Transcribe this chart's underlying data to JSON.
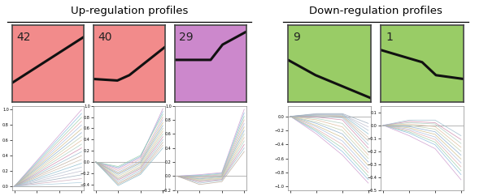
{
  "title_up": "Up-regulation profiles",
  "title_down": "Down-regulation profiles",
  "profiles": [
    {
      "label": "42",
      "color": "#f28b8b",
      "border": "#444444",
      "line": [
        [
          0,
          0.25
        ],
        [
          3,
          0.85
        ]
      ],
      "type": "up"
    },
    {
      "label": "40",
      "color": "#f28b8b",
      "border": "#444444",
      "line": [
        [
          0,
          0.3
        ],
        [
          1,
          0.28
        ],
        [
          1.5,
          0.35
        ],
        [
          3,
          0.72
        ]
      ],
      "type": "up"
    },
    {
      "label": "29",
      "color": "#cc88cc",
      "border": "#444444",
      "line": [
        [
          0,
          0.55
        ],
        [
          1.5,
          0.55
        ],
        [
          2,
          0.75
        ],
        [
          3,
          0.92
        ]
      ],
      "type": "up"
    },
    {
      "label": "9",
      "color": "#99cc66",
      "border": "#444444",
      "line": [
        [
          0,
          0.55
        ],
        [
          1,
          0.35
        ],
        [
          3,
          0.05
        ]
      ],
      "type": "down"
    },
    {
      "label": "1",
      "color": "#99cc66",
      "border": "#444444",
      "line": [
        [
          0,
          0.68
        ],
        [
          1.5,
          0.52
        ],
        [
          2,
          0.35
        ],
        [
          3,
          0.3
        ]
      ],
      "type": "down"
    }
  ],
  "subplot_configs": [
    {
      "id": 0,
      "lines": [
        [
          0,
          0.0,
          3,
          1.0
        ],
        [
          0,
          0.0,
          3,
          0.95
        ],
        [
          0,
          0.0,
          3,
          0.9
        ],
        [
          0,
          0.0,
          3,
          0.85
        ],
        [
          0,
          0.0,
          3,
          0.8
        ],
        [
          0,
          0.0,
          3,
          0.75
        ],
        [
          0,
          0.0,
          3,
          0.7
        ],
        [
          0,
          0.0,
          3,
          0.65
        ],
        [
          0,
          0.0,
          3,
          0.6
        ],
        [
          0,
          0.0,
          3,
          0.55
        ],
        [
          0,
          0.0,
          3,
          0.5
        ],
        [
          0,
          0.0,
          3,
          0.45
        ],
        [
          0,
          0.0,
          3,
          0.4
        ],
        [
          0,
          0.0,
          3,
          0.35
        ],
        [
          0,
          0.0,
          3,
          0.3
        ],
        [
          0,
          0.0,
          3,
          0.25
        ],
        [
          0,
          0.0,
          3,
          0.2
        ],
        [
          0,
          0.0,
          3,
          0.15
        ],
        [
          0,
          0.0,
          3,
          0.1
        ],
        [
          0,
          0.0,
          3,
          0.05
        ]
      ],
      "ylim": [
        -0.05,
        1.05
      ],
      "zero_line": 0.0
    },
    {
      "id": 1,
      "lines": [
        [
          0,
          0.0,
          1,
          -0.12,
          2,
          0.08,
          3,
          0.95
        ],
        [
          0,
          0.0,
          1,
          -0.1,
          2,
          0.1,
          3,
          0.9
        ],
        [
          0,
          0.0,
          1,
          -0.08,
          2,
          0.12,
          3,
          0.85
        ],
        [
          0,
          0.0,
          1,
          -0.15,
          2,
          0.05,
          3,
          0.8
        ],
        [
          0,
          0.0,
          1,
          -0.18,
          2,
          0.02,
          3,
          0.75
        ],
        [
          0,
          0.0,
          1,
          -0.2,
          2,
          0.0,
          3,
          0.7
        ],
        [
          0,
          0.0,
          1,
          -0.22,
          2,
          -0.02,
          3,
          0.65
        ],
        [
          0,
          0.0,
          1,
          -0.25,
          2,
          -0.05,
          3,
          0.6
        ],
        [
          0,
          0.0,
          1,
          -0.28,
          2,
          -0.08,
          3,
          0.55
        ],
        [
          0,
          0.0,
          1,
          -0.3,
          2,
          -0.1,
          3,
          0.5
        ],
        [
          0,
          0.0,
          1,
          -0.32,
          2,
          -0.12,
          3,
          0.45
        ],
        [
          0,
          0.0,
          1,
          -0.35,
          2,
          -0.15,
          3,
          0.4
        ],
        [
          0,
          0.0,
          1,
          -0.38,
          2,
          -0.18,
          3,
          0.35
        ],
        [
          0,
          0.0,
          1,
          -0.4,
          2,
          -0.2,
          3,
          0.3
        ],
        [
          0,
          0.0,
          1,
          -0.42,
          2,
          -0.22,
          3,
          0.25
        ]
      ],
      "ylim": [
        -0.5,
        1.0
      ],
      "zero_line": 0.0
    },
    {
      "id": 2,
      "lines": [
        [
          0,
          0.0,
          1,
          0.02,
          2,
          0.05,
          3,
          0.95
        ],
        [
          0,
          0.0,
          1,
          0.01,
          2,
          0.04,
          3,
          0.9
        ],
        [
          0,
          0.0,
          1,
          0.0,
          2,
          0.03,
          3,
          0.85
        ],
        [
          0,
          0.0,
          1,
          -0.01,
          2,
          0.02,
          3,
          0.8
        ],
        [
          0,
          0.0,
          1,
          -0.02,
          2,
          0.01,
          3,
          0.75
        ],
        [
          0,
          0.0,
          1,
          -0.03,
          2,
          0.0,
          3,
          0.7
        ],
        [
          0,
          0.0,
          1,
          -0.04,
          2,
          -0.01,
          3,
          0.65
        ],
        [
          0,
          0.0,
          1,
          -0.05,
          2,
          -0.02,
          3,
          0.6
        ],
        [
          0,
          0.0,
          1,
          -0.06,
          2,
          -0.03,
          3,
          0.55
        ],
        [
          0,
          0.0,
          1,
          -0.07,
          2,
          -0.04,
          3,
          0.5
        ],
        [
          0,
          0.0,
          1,
          -0.08,
          2,
          -0.05,
          3,
          0.45
        ],
        [
          0,
          0.0,
          1,
          -0.1,
          2,
          -0.06,
          3,
          0.4
        ],
        [
          0,
          0.0,
          1,
          -0.12,
          2,
          -0.08,
          3,
          0.35
        ]
      ],
      "ylim": [
        -0.2,
        1.0
      ],
      "zero_line": 0.0
    },
    {
      "id": 3,
      "lines": [
        [
          0,
          0.0,
          1,
          -0.25,
          2,
          -0.55,
          3,
          -0.95
        ],
        [
          0,
          0.0,
          1,
          -0.22,
          2,
          -0.5,
          3,
          -0.9
        ],
        [
          0,
          0.0,
          1,
          -0.2,
          2,
          -0.45,
          3,
          -0.85
        ],
        [
          0,
          0.0,
          1,
          -0.18,
          2,
          -0.4,
          3,
          -0.8
        ],
        [
          0,
          0.0,
          1,
          -0.15,
          2,
          -0.35,
          3,
          -0.75
        ],
        [
          0,
          0.0,
          1,
          -0.13,
          2,
          -0.3,
          3,
          -0.7
        ],
        [
          0,
          0.0,
          1,
          -0.1,
          2,
          -0.25,
          3,
          -0.65
        ],
        [
          0,
          0.0,
          1,
          -0.08,
          2,
          -0.2,
          3,
          -0.6
        ],
        [
          0,
          0.0,
          1,
          -0.05,
          2,
          -0.15,
          3,
          -0.55
        ],
        [
          0,
          0.0,
          1,
          -0.03,
          2,
          -0.1,
          3,
          -0.5
        ],
        [
          0,
          0.0,
          1,
          -0.01,
          2,
          -0.05,
          3,
          -0.45
        ],
        [
          0,
          0.0,
          1,
          0.0,
          2,
          -0.02,
          3,
          -0.4
        ],
        [
          0,
          0.0,
          1,
          0.01,
          2,
          0.0,
          3,
          -0.35
        ],
        [
          0,
          0.0,
          1,
          0.02,
          2,
          0.01,
          3,
          -0.3
        ],
        [
          0,
          0.0,
          1,
          0.02,
          2,
          0.02,
          3,
          -0.25
        ],
        [
          0,
          0.0,
          1,
          0.03,
          2,
          0.03,
          3,
          -0.2
        ],
        [
          0,
          0.0,
          1,
          0.03,
          2,
          0.03,
          3,
          -0.15
        ],
        [
          0,
          0.0,
          1,
          0.04,
          2,
          0.04,
          3,
          -0.1
        ]
      ],
      "ylim": [
        -1.05,
        0.15
      ],
      "zero_line": 0.0
    },
    {
      "id": 4,
      "lines": [
        [
          0,
          0.0,
          1,
          -0.08,
          2,
          -0.18,
          3,
          -0.42
        ],
        [
          0,
          0.0,
          1,
          -0.06,
          2,
          -0.15,
          3,
          -0.38
        ],
        [
          0,
          0.0,
          1,
          -0.05,
          2,
          -0.13,
          3,
          -0.35
        ],
        [
          0,
          0.0,
          1,
          -0.04,
          2,
          -0.11,
          3,
          -0.32
        ],
        [
          0,
          0.0,
          1,
          -0.03,
          2,
          -0.09,
          3,
          -0.29
        ],
        [
          0,
          0.0,
          1,
          -0.02,
          2,
          -0.07,
          3,
          -0.26
        ],
        [
          0,
          0.0,
          1,
          -0.01,
          2,
          -0.05,
          3,
          -0.23
        ],
        [
          0,
          0.0,
          1,
          0.0,
          2,
          -0.03,
          3,
          -0.2
        ],
        [
          0,
          0.0,
          1,
          0.01,
          2,
          -0.01,
          3,
          -0.17
        ],
        [
          0,
          0.0,
          1,
          0.02,
          2,
          0.01,
          3,
          -0.14
        ],
        [
          0,
          0.0,
          1,
          0.03,
          2,
          0.02,
          3,
          -0.11
        ],
        [
          0,
          0.0,
          1,
          0.04,
          2,
          0.04,
          3,
          -0.08
        ]
      ],
      "ylim": [
        -0.5,
        0.15
      ],
      "zero_line": 0.0
    }
  ],
  "line_colors": [
    "#cc99cc",
    "#88bbdd",
    "#99ccaa",
    "#ddaaaa",
    "#aabbdd",
    "#ccbb88",
    "#88aacc",
    "#bbccaa",
    "#ddbb99",
    "#aaccbb",
    "#cc88aa",
    "#99bbcc",
    "#bbaa99",
    "#ccbbaa",
    "#88bbcc",
    "#aabbcc",
    "#bbbbcc",
    "#99aabb",
    "#ccaabb",
    "#aaccdd"
  ]
}
